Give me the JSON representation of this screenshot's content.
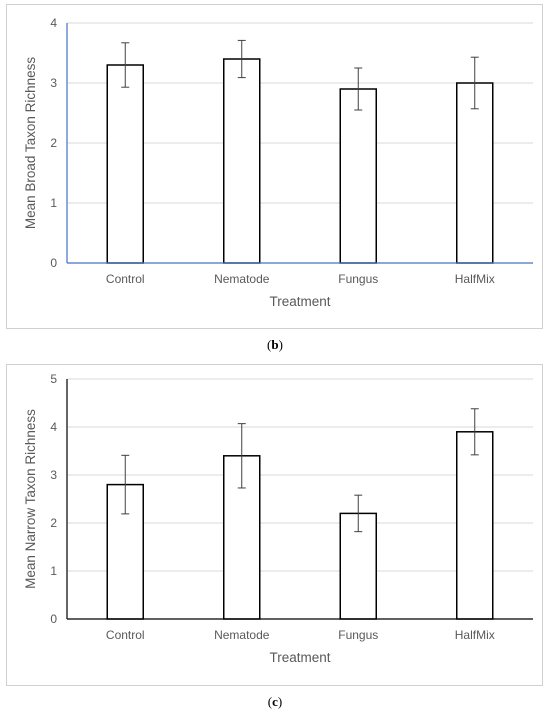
{
  "chart_data": [
    {
      "type": "bar",
      "panel_label": "b",
      "categories": [
        "Control",
        "Nematode",
        "Fungus",
        "HalfMix"
      ],
      "values": [
        3.3,
        3.4,
        2.9,
        3.0
      ],
      "error_low": [
        2.93,
        3.09,
        2.55,
        2.57
      ],
      "error_high": [
        3.67,
        3.71,
        3.25,
        3.43
      ],
      "xlabel": "Treatment",
      "ylabel": "Mean Broad Taxon Richness",
      "ylim": [
        0,
        4
      ],
      "yticks": [
        "0",
        "1",
        "2",
        "3",
        "4"
      ],
      "grid": true,
      "colors": {
        "bar_fill": "#ffffff",
        "bar_stroke": "#000000",
        "axis": "#4472c4",
        "grid": "#d9d9d9"
      }
    },
    {
      "type": "bar",
      "panel_label": "c",
      "categories": [
        "Control",
        "Nematode",
        "Fungus",
        "HalfMix"
      ],
      "values": [
        2.8,
        3.4,
        2.2,
        3.9
      ],
      "error_low": [
        2.19,
        2.73,
        1.82,
        3.42
      ],
      "error_high": [
        3.41,
        4.07,
        2.58,
        4.38
      ],
      "xlabel": "Treatment",
      "ylabel": "Mean Narrow Taxon Richness",
      "ylim": [
        0,
        5
      ],
      "yticks": [
        "0",
        "1",
        "2",
        "3",
        "4",
        "5"
      ],
      "grid": true,
      "colors": {
        "bar_fill": "#ffffff",
        "bar_stroke": "#000000",
        "axis": "#000000",
        "grid": "#d9d9d9"
      }
    }
  ],
  "captions": {
    "b": "b",
    "c": "c"
  }
}
